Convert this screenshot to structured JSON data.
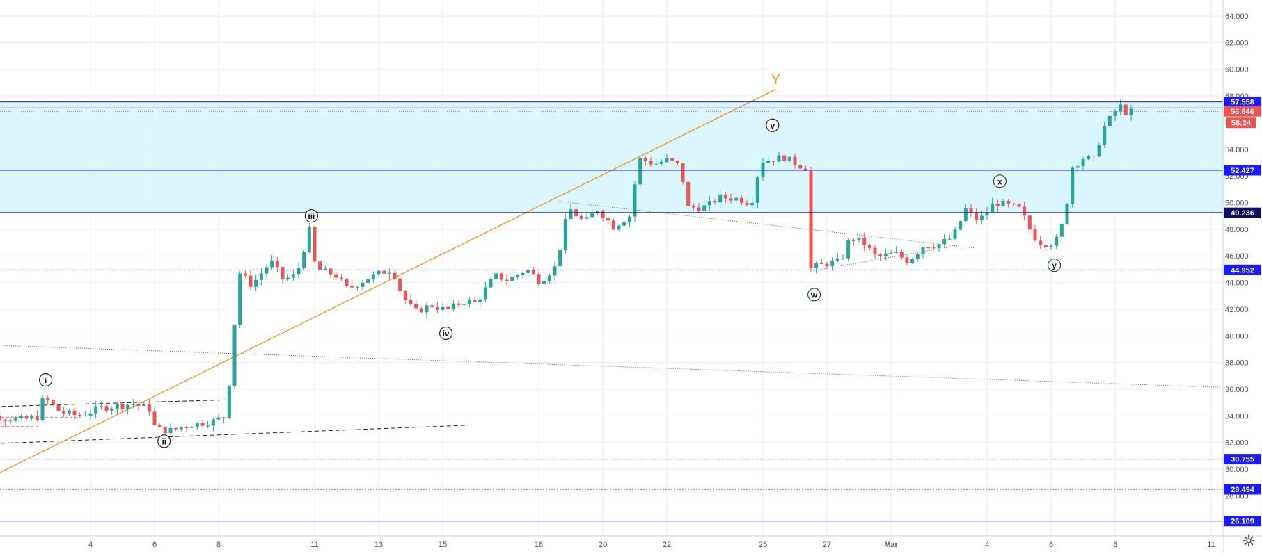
{
  "colors": {
    "up": "#26a69a",
    "down": "#ef5350",
    "grid": "#e9eef2",
    "zone_fill": "#d9f7fd",
    "trend_orange": "#f59a23",
    "line_blue": "#1a1aff",
    "line_navy": "#0d0d66",
    "label_text": "#ffffff",
    "axis_text": "#555555",
    "last_price_bg": "#ef5350"
  },
  "chart_data": {
    "type": "candlestick",
    "ylim": [
      25.0,
      65.2
    ],
    "y_ticks": [
      "64.000",
      "62.000",
      "60.000",
      "58.000",
      "56.000",
      "54.000",
      "52.000",
      "50.000",
      "48.000",
      "46.000",
      "44.000",
      "42.000",
      "40.000",
      "38.000",
      "36.000",
      "34.000",
      "32.000",
      "30.000",
      "28.000"
    ],
    "x_ticks": [
      {
        "day": 4,
        "label": "4"
      },
      {
        "day": 6,
        "label": "6"
      },
      {
        "day": 8,
        "label": "8"
      },
      {
        "day": 11,
        "label": "11"
      },
      {
        "day": 13,
        "label": "13"
      },
      {
        "day": 15,
        "label": "15"
      },
      {
        "day": 18,
        "label": "18"
      },
      {
        "day": 20,
        "label": "20"
      },
      {
        "day": 22,
        "label": "22"
      },
      {
        "day": 25,
        "label": "25"
      },
      {
        "day": 27,
        "label": "27"
      },
      {
        "day": 29,
        "label": "Mar"
      },
      {
        "day": 32,
        "label": "4"
      },
      {
        "day": 34,
        "label": "6"
      },
      {
        "day": 36,
        "label": "8"
      },
      {
        "day": 39,
        "label": "11"
      }
    ],
    "anchors": [
      [
        0.0,
        31.6
      ],
      [
        0.3,
        32.6
      ],
      [
        0.7,
        34.1
      ],
      [
        1.3,
        33.9
      ],
      [
        2.0,
        33.7
      ],
      [
        2.5,
        33.9
      ],
      [
        2.7,
        35.4
      ],
      [
        3.2,
        34.3
      ],
      [
        3.8,
        34.0
      ],
      [
        4.5,
        34.6
      ],
      [
        5.5,
        34.9
      ],
      [
        6.0,
        34.5
      ],
      [
        6.2,
        33.0
      ],
      [
        6.7,
        32.9
      ],
      [
        7.2,
        33.3
      ],
      [
        8.0,
        33.6
      ],
      [
        8.4,
        34.0
      ],
      [
        8.6,
        39.0
      ],
      [
        8.8,
        44.8
      ],
      [
        9.2,
        43.8
      ],
      [
        9.8,
        45.6
      ],
      [
        10.2,
        44.2
      ],
      [
        10.6,
        44.6
      ],
      [
        11.0,
        47.9
      ],
      [
        11.2,
        45.0
      ],
      [
        11.8,
        44.6
      ],
      [
        12.2,
        43.5
      ],
      [
        12.8,
        44.3
      ],
      [
        13.3,
        44.8
      ],
      [
        13.6,
        45.0
      ],
      [
        13.9,
        43.0
      ],
      [
        14.3,
        41.8
      ],
      [
        14.8,
        42.3
      ],
      [
        15.3,
        41.9
      ],
      [
        15.8,
        42.6
      ],
      [
        16.2,
        42.5
      ],
      [
        16.8,
        44.5
      ],
      [
        17.2,
        44.2
      ],
      [
        17.8,
        45.0
      ],
      [
        18.2,
        44.1
      ],
      [
        18.7,
        45.2
      ],
      [
        19.1,
        49.6
      ],
      [
        19.6,
        48.5
      ],
      [
        20.0,
        49.5
      ],
      [
        20.5,
        48.2
      ],
      [
        21.0,
        49.0
      ],
      [
        21.3,
        53.3
      ],
      [
        21.8,
        52.9
      ],
      [
        22.2,
        53.2
      ],
      [
        22.6,
        52.7
      ],
      [
        22.8,
        49.6
      ],
      [
        23.4,
        49.7
      ],
      [
        23.8,
        50.4
      ],
      [
        24.4,
        50.3
      ],
      [
        24.8,
        49.9
      ],
      [
        25.1,
        53.1
      ],
      [
        25.8,
        53.4
      ],
      [
        26.3,
        52.8
      ],
      [
        26.5,
        52.6
      ],
      [
        26.6,
        45.0
      ],
      [
        27.1,
        45.4
      ],
      [
        27.6,
        45.6
      ],
      [
        27.9,
        47.4
      ],
      [
        28.3,
        47.0
      ],
      [
        28.7,
        45.9
      ],
      [
        29.3,
        46.2
      ],
      [
        29.7,
        45.6
      ],
      [
        30.2,
        46.8
      ],
      [
        30.6,
        46.8
      ],
      [
        31.1,
        47.4
      ],
      [
        31.5,
        49.5
      ],
      [
        31.9,
        48.6
      ],
      [
        32.4,
        50.0
      ],
      [
        32.8,
        49.8
      ],
      [
        33.2,
        49.5
      ],
      [
        33.6,
        47.5
      ],
      [
        33.9,
        46.9
      ],
      [
        34.3,
        47.0
      ],
      [
        34.6,
        48.9
      ],
      [
        34.8,
        52.6
      ],
      [
        35.2,
        53.4
      ],
      [
        35.5,
        53.2
      ],
      [
        35.8,
        55.6
      ],
      [
        36.1,
        56.6
      ],
      [
        36.3,
        57.3
      ],
      [
        36.5,
        56.8
      ]
    ],
    "h_levels": [
      {
        "value": 57.558,
        "label": "57.558",
        "style": "solid"
      },
      {
        "value": 52.427,
        "label": "52.427",
        "style": "solid"
      },
      {
        "value": 49.236,
        "label": "49.236",
        "style": "solid-dark"
      },
      {
        "value": 44.952,
        "label": "44.952",
        "style": "dotted"
      },
      {
        "value": 30.755,
        "label": "30.755",
        "style": "dotted"
      },
      {
        "value": 28.494,
        "label": "28.494",
        "style": "dotted"
      },
      {
        "value": 26.109,
        "label": "26.109",
        "style": "solid"
      }
    ],
    "zone": {
      "from": 49.236,
      "to": 57.558
    },
    "last_price": {
      "value": 56.846,
      "label": "56.846",
      "countdown": "58:24"
    },
    "wave_labels": [
      {
        "text": "i",
        "day": 2.6,
        "price": 36.7,
        "style": "circle"
      },
      {
        "text": "ii",
        "day": 6.3,
        "price": 32.1,
        "style": "circle"
      },
      {
        "text": "iii",
        "day": 10.9,
        "price": 49.0,
        "style": "circle"
      },
      {
        "text": "iv",
        "day": 15.1,
        "price": 40.2,
        "style": "circle"
      },
      {
        "text": "v",
        "day": 25.3,
        "price": 55.8,
        "style": "circle"
      },
      {
        "text": "w",
        "day": 26.6,
        "price": 43.1,
        "style": "circle-green"
      },
      {
        "text": "x",
        "day": 32.4,
        "price": 51.6,
        "style": "circle-green"
      },
      {
        "text": "y",
        "day": 34.1,
        "price": 45.3,
        "style": "circle-green"
      },
      {
        "text": "Y",
        "day": 25.4,
        "price": 58.9,
        "style": "orange-text"
      }
    ],
    "trend_lines": [
      {
        "from": [
          -0.3,
          28.0
        ],
        "to": [
          25.4,
          58.5
        ],
        "style": "orange"
      },
      {
        "from": [
          -0.3,
          39.4
        ],
        "to": [
          39.8,
          36.1
        ],
        "style": "dotted-gray"
      },
      {
        "from": [
          -0.3,
          34.6
        ],
        "to": [
          8.2,
          35.2
        ],
        "style": "dashed"
      },
      {
        "from": [
          -0.3,
          31.8
        ],
        "to": [
          15.8,
          33.3
        ],
        "style": "dashed"
      },
      {
        "from": [
          18.6,
          50.1
        ],
        "to": [
          31.6,
          46.6
        ],
        "style": "dotted-gray"
      },
      {
        "from": [
          26.6,
          44.9
        ],
        "to": [
          30.9,
          46.7
        ],
        "style": "dotted-gray"
      },
      {
        "from": [
          0.0,
          33.9
        ],
        "to": [
          3.7,
          33.9
        ],
        "style": "pink-dashed"
      },
      {
        "from": [
          0.0,
          33.2
        ],
        "to": [
          2.4,
          33.2
        ],
        "style": "pink-dashed"
      }
    ]
  },
  "ui": {
    "settings_icon": "gear-icon"
  }
}
